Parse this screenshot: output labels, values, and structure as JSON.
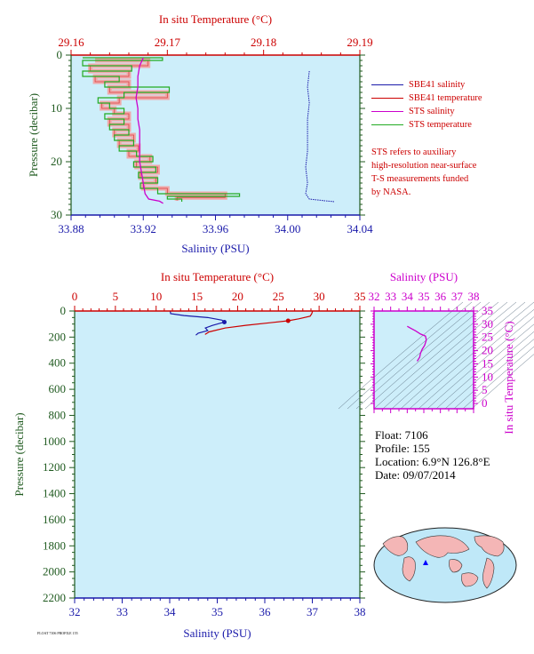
{
  "chart_data": [
    {
      "type": "line",
      "panel": "near-surface",
      "top_axis": {
        "label": "In situ Temperature (°C)",
        "ticks": [
          "29.16",
          "29.17",
          "29.18",
          "29.19"
        ],
        "range": [
          29.16,
          29.19
        ]
      },
      "bottom_axis": {
        "label": "Salinity (PSU)",
        "ticks": [
          "33.88",
          "33.92",
          "33.96",
          "34.00",
          "34.04"
        ],
        "range": [
          33.88,
          34.04
        ]
      },
      "left_axis": {
        "label": "Pressure (decibar)",
        "ticks": [
          "0",
          "10",
          "20",
          "30"
        ],
        "range": [
          0,
          30
        ],
        "inverted": true
      },
      "grid": false,
      "legend": {
        "placement": "right",
        "entries": [
          {
            "name": "SBE41 salinity",
            "color": "#1a1aaa"
          },
          {
            "name": "SBE41 temperature",
            "color": "#cc0000"
          },
          {
            "name": "STS salinity",
            "color": "#cc00cc"
          },
          {
            "name": "STS temperature",
            "color": "#22aa22"
          }
        ]
      },
      "annotation": [
        "STS refers to auxiliary",
        "high-resolution near-surface",
        "T-S measurements funded",
        "by NASA."
      ],
      "series": [
        {
          "name": "SBE41 salinity",
          "axis": "salinity",
          "points": [
            [
              34.012,
              3
            ],
            [
              34.011,
              6
            ],
            [
              34.012,
              9
            ],
            [
              34.011,
              12
            ],
            [
              34.011,
              15
            ],
            [
              34.011,
              18
            ],
            [
              34.01,
              21
            ],
            [
              34.011,
              24
            ],
            [
              34.01,
              26
            ],
            [
              34.012,
              27
            ],
            [
              34.02,
              27.3
            ],
            [
              34.026,
              27.5
            ]
          ]
        },
        {
          "name": "STS salinity",
          "axis": "salinity",
          "points": [
            [
              33.92,
              0.5
            ],
            [
              33.918,
              2
            ],
            [
              33.917,
              4
            ],
            [
              33.917,
              6
            ],
            [
              33.916,
              8
            ],
            [
              33.917,
              10
            ],
            [
              33.917,
              12
            ],
            [
              33.918,
              14
            ],
            [
              33.918,
              16
            ],
            [
              33.918,
              18
            ],
            [
              33.918,
              20
            ],
            [
              33.919,
              22
            ],
            [
              33.92,
              24
            ],
            [
              33.921,
              26
            ],
            [
              33.923,
              27
            ],
            [
              33.929,
              27.4
            ],
            [
              33.931,
              27.8
            ]
          ]
        },
        {
          "name": "STS temperature",
          "axis": "temperature",
          "points": [
            [
              29.1612,
              0.5
            ],
            [
              29.1695,
              1
            ],
            [
              29.1612,
              2
            ],
            [
              29.1663,
              3
            ],
            [
              29.1612,
              4
            ],
            [
              29.165,
              5
            ],
            [
              29.1635,
              6
            ],
            [
              29.1702,
              7
            ],
            [
              29.1655,
              8
            ],
            [
              29.1628,
              9
            ],
            [
              29.164,
              10
            ],
            [
              29.1655,
              11
            ],
            [
              29.1635,
              12
            ],
            [
              29.1655,
              13
            ],
            [
              29.164,
              14
            ],
            [
              29.166,
              15
            ],
            [
              29.1645,
              16
            ],
            [
              29.1665,
              17
            ],
            [
              29.165,
              18
            ],
            [
              29.1668,
              19
            ],
            [
              29.1685,
              20
            ],
            [
              29.1665,
              21
            ],
            [
              29.1688,
              22
            ],
            [
              29.167,
              23
            ],
            [
              29.169,
              24
            ],
            [
              29.1672,
              25
            ],
            [
              29.169,
              26
            ],
            [
              29.1775,
              26.5
            ],
            [
              29.17,
              27
            ],
            [
              29.1715,
              27.5
            ]
          ]
        },
        {
          "name": "SBE41 temperature",
          "axis": "temperature",
          "points": [
            [
              29.1625,
              1
            ],
            [
              29.168,
              2
            ],
            [
              29.162,
              3
            ],
            [
              29.166,
              4
            ],
            [
              29.1625,
              5
            ],
            [
              29.166,
              6
            ],
            [
              29.164,
              7
            ],
            [
              29.17,
              8
            ],
            [
              29.165,
              9
            ],
            [
              29.1632,
              10
            ],
            [
              29.1645,
              11
            ],
            [
              29.166,
              12
            ],
            [
              29.164,
              13
            ],
            [
              29.166,
              14
            ],
            [
              29.1645,
              15
            ],
            [
              29.1665,
              16
            ],
            [
              29.165,
              17
            ],
            [
              29.167,
              18
            ],
            [
              29.166,
              19
            ],
            [
              29.1682,
              20
            ],
            [
              29.1668,
              21
            ],
            [
              29.169,
              22
            ],
            [
              29.1672,
              23
            ],
            [
              29.1688,
              24
            ],
            [
              29.1675,
              25
            ],
            [
              29.17,
              26
            ],
            [
              29.176,
              26.7
            ],
            [
              29.171,
              27.3
            ]
          ]
        }
      ]
    },
    {
      "type": "line",
      "panel": "full-profile",
      "top_axis": {
        "label": "In situ Temperature (°C)",
        "ticks": [
          "0",
          "5",
          "10",
          "15",
          "20",
          "25",
          "30",
          "35"
        ],
        "range": [
          0,
          35
        ]
      },
      "bottom_axis": {
        "label": "Salinity (PSU)",
        "ticks": [
          "32",
          "33",
          "34",
          "35",
          "36",
          "37",
          "38"
        ],
        "range": [
          32,
          38
        ]
      },
      "left_axis": {
        "label": "Pressure (decibar)",
        "ticks": [
          "0",
          "200",
          "400",
          "600",
          "800",
          "1000",
          "1200",
          "1400",
          "1600",
          "1800",
          "2000",
          "2200"
        ],
        "range": [
          0,
          2200
        ],
        "inverted": true
      },
      "grid": false,
      "series": [
        {
          "name": "Salinity",
          "axis": "salinity",
          "color": "#1a1aaa",
          "points": [
            [
              34.01,
              0
            ],
            [
              34.02,
              20
            ],
            [
              34.3,
              35
            ],
            [
              34.8,
              50
            ],
            [
              35.1,
              70
            ],
            [
              35.15,
              85
            ],
            [
              35.05,
              95
            ],
            [
              34.9,
              110
            ],
            [
              34.75,
              130
            ],
            [
              34.8,
              150
            ],
            [
              34.6,
              170
            ],
            [
              34.55,
              185
            ]
          ]
        },
        {
          "name": "Temperature",
          "axis": "temperature",
          "color": "#cc0000",
          "points": [
            [
              29.2,
              0
            ],
            [
              29.1,
              20
            ],
            [
              28.9,
              40
            ],
            [
              27.5,
              60
            ],
            [
              26.2,
              75
            ],
            [
              24.0,
              90
            ],
            [
              21.0,
              110
            ],
            [
              18.5,
              130
            ],
            [
              16.5,
              160
            ],
            [
              16.0,
              180
            ]
          ]
        }
      ]
    },
    {
      "type": "line",
      "panel": "T-S diagram",
      "top_axis": {
        "label": "Salinity (PSU)",
        "ticks": [
          "32",
          "33",
          "34",
          "35",
          "36",
          "37",
          "38"
        ],
        "range": [
          32,
          38
        ]
      },
      "right_axis": {
        "label": "In situ Temperature (°C)",
        "ticks": [
          "0",
          "5",
          "10",
          "15",
          "20",
          "25",
          "30",
          "35"
        ],
        "range": [
          0,
          35
        ]
      },
      "series": [
        {
          "name": "T-S",
          "color": "#cc00cc",
          "points": [
            [
              34.0,
              29.2
            ],
            [
              34.2,
              28.5
            ],
            [
              34.5,
              27.5
            ],
            [
              34.8,
              26.3
            ],
            [
              35.1,
              25.5
            ],
            [
              35.15,
              24.0
            ],
            [
              35.05,
              22.0
            ],
            [
              34.9,
              20.5
            ],
            [
              34.8,
              19.0
            ],
            [
              34.75,
              17.5
            ],
            [
              34.6,
              16.0
            ]
          ]
        }
      ]
    }
  ],
  "float_info": {
    "float": "Float:  7106",
    "profile": "Profile:  155",
    "location": "Location:  6.9°N  126.8°E",
    "date": "Date:  09/07/2014"
  },
  "footnote": "FLOAT 7106 PROFILE 155",
  "colors": {
    "plot_bg": "#cdeefa",
    "red": "#cc0000",
    "blue": "#1a1aaa",
    "green_axis": "#1f5a1f",
    "magenta": "#cc00cc",
    "sts_temp": "#22aa22",
    "sbe_temp_fill": "#f4a0a0"
  }
}
